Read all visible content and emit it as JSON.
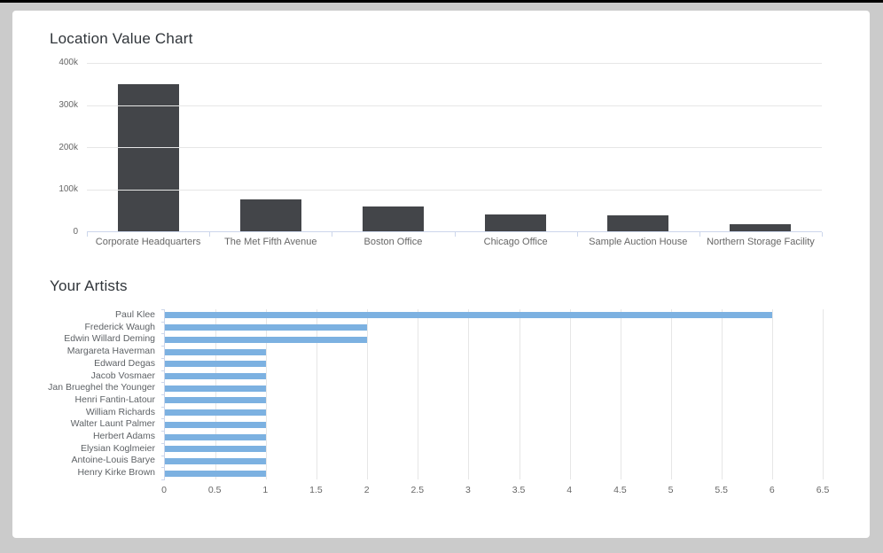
{
  "colors": {
    "page_background": "#cbcbcb",
    "card_background": "#ffffff",
    "column_bar": "#434549",
    "artist_bar": "#7cb1e1",
    "gridline": "#e6e6e6",
    "axis_line": "#ccd6eb",
    "axis_label": "#666666",
    "title_text": "#30353a"
  },
  "chart_data": [
    {
      "type": "bar",
      "title": "Location Value Chart",
      "categories": [
        "Corporate Headquarters",
        "The Met Fifth Avenue",
        "Boston Office",
        "Chicago Office",
        "Sample Auction House",
        "Northern Storage Facility"
      ],
      "values": [
        350000,
        75000,
        60000,
        40000,
        38000,
        17000
      ],
      "xlabel": "",
      "ylabel": "",
      "ylim": [
        0,
        400000
      ],
      "ytick_labels_top_to_bottom": [
        "400k",
        "300k",
        "200k",
        "100k",
        "0"
      ],
      "grid": "horizontal",
      "legend": "none"
    },
    {
      "type": "bar",
      "orientation": "horizontal",
      "title": "Your Artists",
      "categories": [
        "Paul Klee",
        "Frederick Waugh",
        "Edwin Willard Deming",
        "Margareta Haverman",
        "Edward Degas",
        "Jacob Vosmaer",
        "Jan Brueghel the Younger",
        "Henri Fantin-Latour",
        "William Richards",
        "Walter Launt Palmer",
        "Herbert Adams",
        "Elysian Koglmeier",
        "Antoine-Louis Barye",
        "Henry Kirke Brown"
      ],
      "values": [
        6,
        2,
        2,
        1,
        1,
        1,
        1,
        1,
        1,
        1,
        1,
        1,
        1,
        1
      ],
      "xlabel": "",
      "ylabel": "",
      "xlim": [
        0,
        6.5
      ],
      "xtick_labels": [
        "0",
        "0.5",
        "1",
        "1.5",
        "2",
        "2.5",
        "3",
        "3.5",
        "4",
        "4.5",
        "5",
        "5.5",
        "6",
        "6.5"
      ],
      "grid": "vertical",
      "legend": "none"
    }
  ]
}
